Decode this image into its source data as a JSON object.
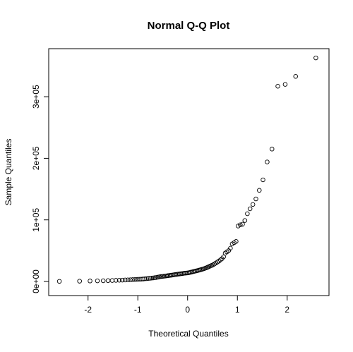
{
  "chart_data": {
    "type": "scatter",
    "title": "Normal Q-Q Plot",
    "x_label": "Theoretical Quantiles",
    "y_label": "Sample Quantiles",
    "xlim": [
      -2.79,
      2.84
    ],
    "ylim": [
      -22900,
      378000
    ],
    "xticks": [
      -2,
      -1,
      0,
      1,
      2
    ],
    "yticks": [
      {
        "value": 0,
        "label": "0e+00"
      },
      {
        "value": 100000,
        "label": "1e+05"
      },
      {
        "value": 200000,
        "label": "2e+05"
      },
      {
        "value": 300000,
        "label": "3e+05"
      }
    ],
    "color": "#000000",
    "x": [
      -2.576,
      -2.17,
      -1.96,
      -1.812,
      -1.695,
      -1.598,
      -1.514,
      -1.44,
      -1.372,
      -1.311,
      -1.254,
      -1.2,
      -1.15,
      -1.103,
      -1.058,
      -1.015,
      -0.974,
      -0.935,
      -0.896,
      -0.86,
      -0.824,
      -0.789,
      -0.755,
      -0.722,
      -0.69,
      -0.659,
      -0.628,
      -0.598,
      -0.568,
      -0.539,
      -0.51,
      -0.482,
      -0.454,
      -0.426,
      -0.399,
      -0.372,
      -0.345,
      -0.319,
      -0.292,
      -0.266,
      -0.24,
      -0.215,
      -0.189,
      -0.164,
      -0.138,
      -0.113,
      -0.088,
      -0.063,
      -0.038,
      -0.013,
      0.013,
      0.038,
      0.063,
      0.088,
      0.113,
      0.138,
      0.164,
      0.189,
      0.215,
      0.24,
      0.266,
      0.292,
      0.319,
      0.345,
      0.372,
      0.399,
      0.426,
      0.454,
      0.482,
      0.51,
      0.539,
      0.568,
      0.598,
      0.628,
      0.659,
      0.69,
      0.722,
      0.755,
      0.789,
      0.824,
      0.86,
      0.896,
      0.935,
      0.974,
      1.015,
      1.058,
      1.103,
      1.15,
      1.2,
      1.254,
      1.311,
      1.372,
      1.44,
      1.514,
      1.598,
      1.695,
      1.812,
      1.96,
      2.17,
      2.576
    ],
    "values": [
      200,
      500,
      800,
      1000,
      1200,
      1400,
      1600,
      1800,
      2000,
      2200,
      2400,
      2600,
      2800,
      3000,
      3200,
      3400,
      3600,
      3800,
      4000,
      4300,
      4600,
      4900,
      5200,
      5500,
      5800,
      6100,
      6500,
      7000,
      7500,
      8000,
      8200,
      8500,
      8800,
      9100,
      9400,
      9700,
      10000,
      10300,
      10600,
      11000,
      11300,
      11600,
      11900,
      12200,
      12500,
      12800,
      13100,
      13400,
      13600,
      13800,
      14000,
      14500,
      15000,
      15500,
      16000,
      16500,
      17000,
      17500,
      18000,
      18600,
      19200,
      19800,
      20500,
      21200,
      22000,
      23000,
      24000,
      25000,
      26000,
      27000,
      28500,
      30000,
      31500,
      33000,
      35000,
      37000,
      40000,
      46000,
      48000,
      50000,
      54000,
      61000,
      63000,
      65000,
      90000,
      92000,
      93000,
      99000,
      110000,
      118000,
      125000,
      134000,
      148000,
      165000,
      194000,
      215000,
      317000,
      320000,
      333000,
      363000
    ]
  }
}
